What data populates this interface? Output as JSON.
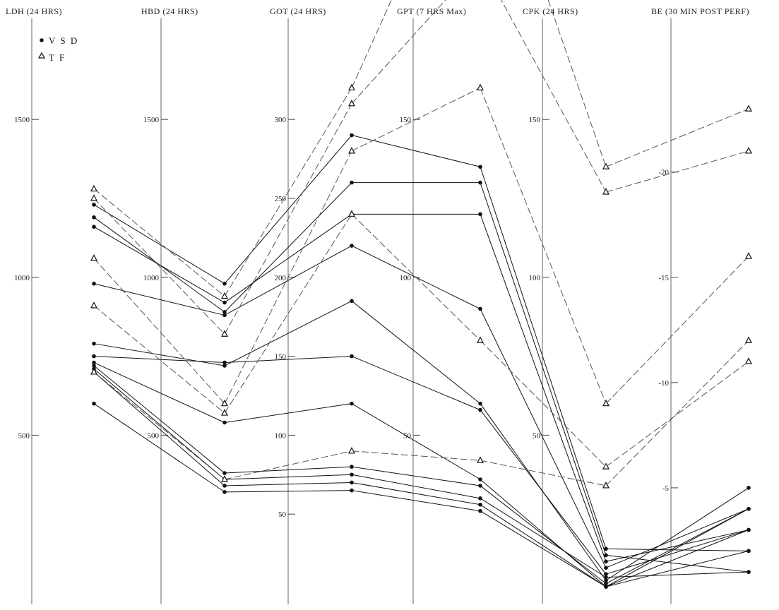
{
  "chart_data": {
    "type": "line",
    "legend": {
      "placement": "top-left",
      "entries": [
        {
          "symbol": "•",
          "label": "V S D"
        },
        {
          "symbol": "Δ",
          "label": "T F"
        }
      ]
    },
    "axes": [
      {
        "key": "ldh",
        "title": "LDH (24 HRS)",
        "min": 0,
        "max": 1800,
        "ticks": [
          {
            "value": 500,
            "label": "500"
          },
          {
            "value": 1000,
            "label": "1000"
          },
          {
            "value": 1500,
            "label": "1500"
          }
        ]
      },
      {
        "key": "hbd",
        "title": "HBD (24 HRS)",
        "min": 0,
        "max": 1800,
        "ticks": [
          {
            "value": 500,
            "label": "500"
          },
          {
            "value": 1000,
            "label": "1000"
          },
          {
            "value": 1500,
            "label": "1500"
          }
        ]
      },
      {
        "key": "got",
        "title": "GOT (24 HRS)",
        "min": 0,
        "max": 360,
        "ticks": [
          {
            "value": 50,
            "label": "50"
          },
          {
            "value": 100,
            "label": "100"
          },
          {
            "value": 150,
            "label": "150"
          },
          {
            "value": 200,
            "label": "200"
          },
          {
            "value": 250,
            "label": "250"
          },
          {
            "value": 300,
            "label": "300"
          }
        ]
      },
      {
        "key": "gpt",
        "title": "GPT (7 HRS Max)",
        "min": 0,
        "max": 180,
        "ticks": [
          {
            "value": 50,
            "label": "50"
          },
          {
            "value": 100,
            "label": "100"
          },
          {
            "value": 150,
            "label": "150"
          }
        ]
      },
      {
        "key": "cpk",
        "title": "CPK (24 HRS)",
        "min": 0,
        "max": 180,
        "ticks": [
          {
            "value": 50,
            "label": "50"
          },
          {
            "value": 100,
            "label": "100"
          },
          {
            "value": 150,
            "label": "150"
          }
        ]
      },
      {
        "key": "be",
        "title": "BE (30 MIN POST PERF)",
        "min": 0,
        "max": -27,
        "ticks": [
          {
            "value": -5,
            "label": "-5"
          },
          {
            "value": -10,
            "label": "-10"
          },
          {
            "value": -15,
            "label": "-15"
          },
          {
            "value": -20,
            "label": "-20"
          }
        ]
      }
    ],
    "series": [
      {
        "group": "VSD",
        "values": [
          1230,
          980,
          290,
          135,
          14,
          -2
        ]
      },
      {
        "group": "VSD",
        "values": [
          1190,
          890,
          260,
          130,
          12,
          -1
        ]
      },
      {
        "group": "VSD",
        "values": [
          1160,
          920,
          240,
          120,
          10,
          -3
        ]
      },
      {
        "group": "VSD",
        "values": [
          980,
          880,
          220,
          90,
          8,
          -4
        ]
      },
      {
        "group": "VSD",
        "values": [
          790,
          720,
          185,
          60,
          4,
          -5
        ]
      },
      {
        "group": "VSD",
        "values": [
          750,
          730,
          150,
          58,
          6,
          -3
        ]
      },
      {
        "group": "VSD",
        "values": [
          730,
          540,
          120,
          36,
          2,
          -2
        ]
      },
      {
        "group": "VSD",
        "values": [
          720,
          380,
          80,
          34,
          3,
          -4
        ]
      },
      {
        "group": "VSD",
        "values": [
          710,
          360,
          75,
          30,
          5,
          -1
        ]
      },
      {
        "group": "VSD",
        "values": [
          700,
          340,
          70,
          28,
          2,
          -3
        ]
      },
      {
        "group": "VSD",
        "values": [
          600,
          320,
          65,
          26,
          2,
          -4
        ]
      },
      {
        "group": "TF",
        "values": [
          1280,
          940,
          320,
          250,
          135,
          -23
        ]
      },
      {
        "group": "TF",
        "values": [
          1250,
          820,
          310,
          200,
          127,
          -21
        ]
      },
      {
        "group": "TF",
        "values": [
          1060,
          600,
          280,
          160,
          60,
          -16
        ]
      },
      {
        "group": "TF",
        "values": [
          910,
          570,
          240,
          80,
          40,
          -11
        ]
      },
      {
        "group": "TF",
        "values": [
          700,
          360,
          90,
          42,
          34,
          -12
        ]
      }
    ]
  }
}
